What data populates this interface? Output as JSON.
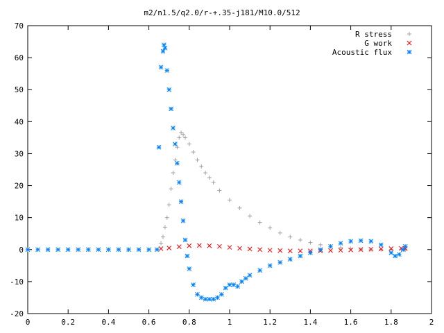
{
  "chart_data": {
    "type": "scatter",
    "title": "m2/n1.5/q2.0/r-+.35-j181/M10.0/512",
    "xlabel": "",
    "ylabel": "",
    "xlim": [
      0,
      2
    ],
    "ylim": [
      -20,
      70
    ],
    "x_ticks": [
      "0",
      "0.2",
      "0.4",
      "0.6",
      "0.8",
      "1",
      "1.2",
      "1.4",
      "1.6",
      "1.8",
      "2"
    ],
    "y_ticks": [
      "-20",
      "-10",
      "0",
      "10",
      "20",
      "30",
      "40",
      "50",
      "60",
      "70"
    ],
    "grid": false,
    "legend_position": "top-right",
    "series": [
      {
        "name": "R stress",
        "marker": "plus",
        "color": "#a0a0a0",
        "points": [
          [
            0.66,
            2
          ],
          [
            0.67,
            4
          ],
          [
            0.68,
            7
          ],
          [
            0.69,
            10
          ],
          [
            0.7,
            14
          ],
          [
            0.71,
            19
          ],
          [
            0.72,
            24
          ],
          [
            0.73,
            28
          ],
          [
            0.74,
            32
          ],
          [
            0.75,
            35
          ],
          [
            0.76,
            36.5
          ],
          [
            0.77,
            36
          ],
          [
            0.78,
            35
          ],
          [
            0.8,
            33
          ],
          [
            0.82,
            30.5
          ],
          [
            0.84,
            28
          ],
          [
            0.86,
            26
          ],
          [
            0.88,
            24
          ],
          [
            0.9,
            22.5
          ],
          [
            0.92,
            21
          ],
          [
            0.95,
            18.5
          ],
          [
            1.0,
            15.5
          ],
          [
            1.05,
            13
          ],
          [
            1.1,
            10.5
          ],
          [
            1.15,
            8.5
          ],
          [
            1.2,
            6.8
          ],
          [
            1.25,
            5.2
          ],
          [
            1.3,
            4
          ],
          [
            1.35,
            3
          ],
          [
            1.4,
            2.2
          ],
          [
            1.45,
            1.5
          ],
          [
            1.5,
            1
          ],
          [
            1.55,
            0.6
          ],
          [
            1.6,
            0.3
          ],
          [
            1.65,
            0.1
          ],
          [
            1.7,
            0
          ],
          [
            1.75,
            0
          ],
          [
            1.8,
            0
          ],
          [
            1.85,
            0
          ],
          [
            1.87,
            0
          ]
        ]
      },
      {
        "name": "G work",
        "marker": "cross",
        "color": "#ff0000",
        "points": [
          [
            0.66,
            0.3
          ],
          [
            0.7,
            0.5
          ],
          [
            0.75,
            0.9
          ],
          [
            0.8,
            1.2
          ],
          [
            0.85,
            1.3
          ],
          [
            0.9,
            1.2
          ],
          [
            0.95,
            1.0
          ],
          [
            1.0,
            0.7
          ],
          [
            1.05,
            0.4
          ],
          [
            1.1,
            0.2
          ],
          [
            1.15,
            0
          ],
          [
            1.2,
            -0.2
          ],
          [
            1.25,
            -0.3
          ],
          [
            1.3,
            -0.4
          ],
          [
            1.35,
            -0.4
          ],
          [
            1.4,
            -0.4
          ],
          [
            1.45,
            -0.4
          ],
          [
            1.5,
            -0.3
          ],
          [
            1.55,
            -0.2
          ],
          [
            1.6,
            -0.1
          ],
          [
            1.65,
            0
          ],
          [
            1.7,
            0.1
          ],
          [
            1.75,
            0.2
          ],
          [
            1.8,
            0.3
          ],
          [
            1.85,
            0.4
          ],
          [
            1.87,
            0.3
          ]
        ]
      },
      {
        "name": "Acoustic flux",
        "marker": "star",
        "color": "#0080ff",
        "points": [
          [
            0.0,
            0
          ],
          [
            0.05,
            0
          ],
          [
            0.1,
            0
          ],
          [
            0.15,
            0
          ],
          [
            0.2,
            0
          ],
          [
            0.25,
            0
          ],
          [
            0.3,
            0
          ],
          [
            0.35,
            0
          ],
          [
            0.4,
            0
          ],
          [
            0.45,
            0
          ],
          [
            0.5,
            0
          ],
          [
            0.55,
            0
          ],
          [
            0.6,
            0
          ],
          [
            0.64,
            0
          ],
          [
            0.65,
            32
          ],
          [
            0.66,
            57
          ],
          [
            0.67,
            62
          ],
          [
            0.675,
            64
          ],
          [
            0.68,
            63
          ],
          [
            0.69,
            56
          ],
          [
            0.7,
            50
          ],
          [
            0.71,
            44
          ],
          [
            0.72,
            38
          ],
          [
            0.73,
            33
          ],
          [
            0.74,
            27
          ],
          [
            0.75,
            21
          ],
          [
            0.76,
            15
          ],
          [
            0.77,
            9
          ],
          [
            0.78,
            3
          ],
          [
            0.79,
            -2
          ],
          [
            0.8,
            -6
          ],
          [
            0.82,
            -11
          ],
          [
            0.84,
            -14
          ],
          [
            0.86,
            -15
          ],
          [
            0.88,
            -15.5
          ],
          [
            0.9,
            -15.5
          ],
          [
            0.92,
            -15.5
          ],
          [
            0.94,
            -15
          ],
          [
            0.96,
            -14
          ],
          [
            0.98,
            -12
          ],
          [
            1.0,
            -11
          ],
          [
            1.02,
            -11
          ],
          [
            1.04,
            -11.5
          ],
          [
            1.06,
            -10
          ],
          [
            1.08,
            -9
          ],
          [
            1.1,
            -8
          ],
          [
            1.15,
            -6.5
          ],
          [
            1.2,
            -5
          ],
          [
            1.25,
            -4
          ],
          [
            1.3,
            -3
          ],
          [
            1.35,
            -2
          ],
          [
            1.4,
            -1
          ],
          [
            1.45,
            0
          ],
          [
            1.5,
            1
          ],
          [
            1.55,
            2
          ],
          [
            1.6,
            2.6
          ],
          [
            1.65,
            2.8
          ],
          [
            1.7,
            2.6
          ],
          [
            1.75,
            1.5
          ],
          [
            1.8,
            -1
          ],
          [
            1.82,
            -2
          ],
          [
            1.84,
            -1.5
          ],
          [
            1.86,
            0
          ],
          [
            1.87,
            1
          ]
        ]
      }
    ]
  }
}
